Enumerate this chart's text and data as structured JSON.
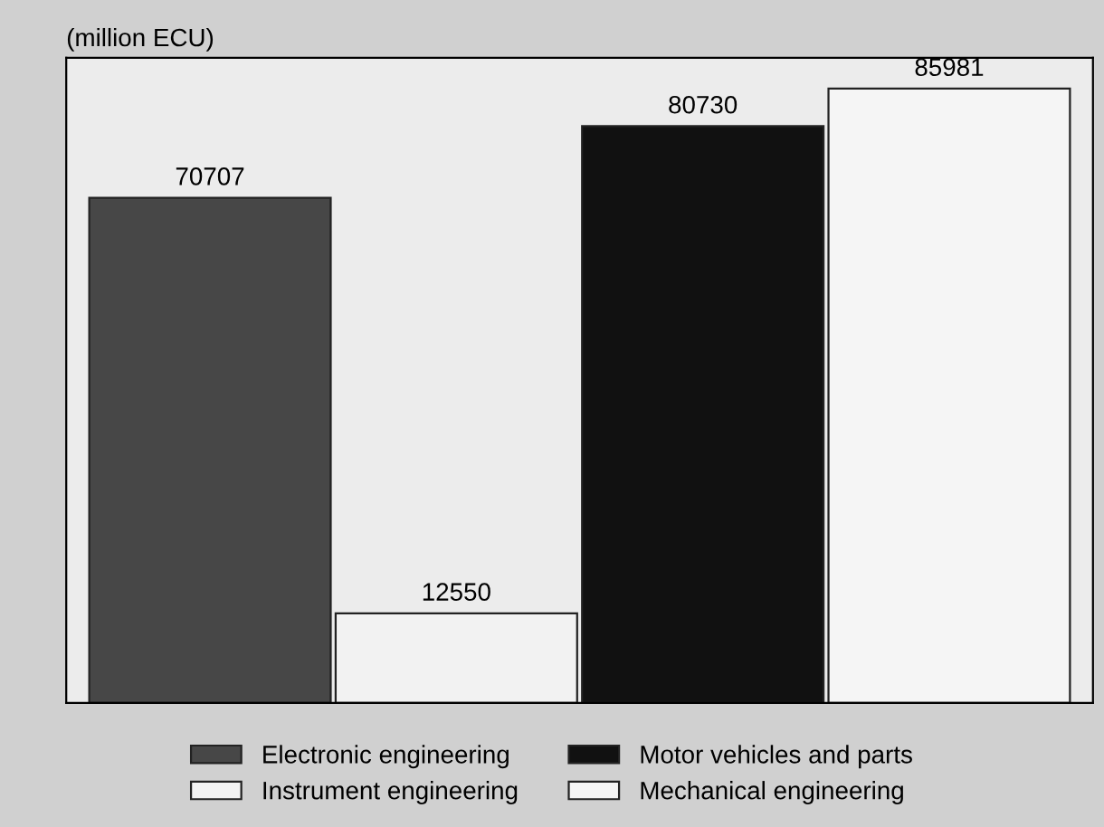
{
  "chart_data": {
    "type": "bar",
    "ylabel": "(million ECU)",
    "categories": [
      null
    ],
    "series": [
      {
        "name": "Electronic engineering",
        "color": "#474747",
        "values": [
          70707
        ]
      },
      {
        "name": "Instrument engineering",
        "color": "#f2f2f2",
        "values": [
          12550
        ]
      },
      {
        "name": "Motor vehicles and parts",
        "color": "#111111",
        "values": [
          80730
        ]
      },
      {
        "name": "Mechanical engineering",
        "color": "#f5f5f5",
        "values": [
          85981
        ]
      }
    ],
    "data_labels": true,
    "legend": "bottom",
    "grid": false
  }
}
